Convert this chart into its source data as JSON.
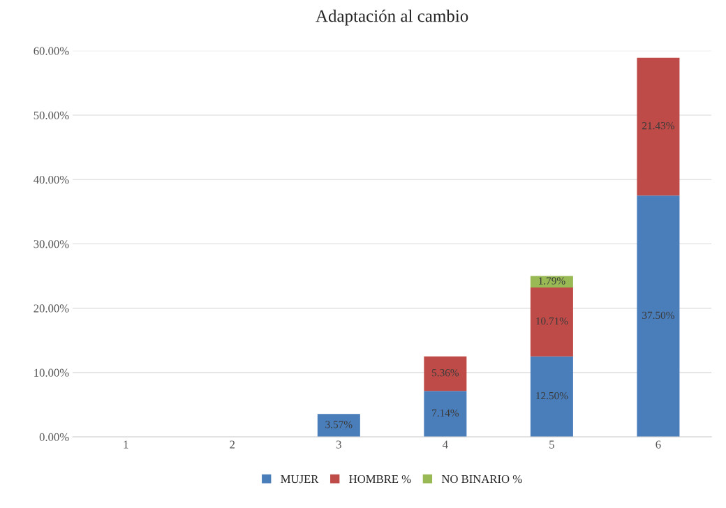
{
  "chart_data": {
    "type": "bar",
    "title": "Adaptación al cambio",
    "stacked": true,
    "categories": [
      "1",
      "2",
      "3",
      "4",
      "5",
      "6"
    ],
    "series": [
      {
        "name": "MUJER",
        "color": "#4a7ebb",
        "values": [
          null,
          null,
          3.57,
          7.14,
          12.5,
          37.5
        ],
        "value_labels": [
          null,
          null,
          "3.57%",
          "7.14%",
          "12.50%",
          "37.50%"
        ]
      },
      {
        "name": "HOMBRE %",
        "color": "#be4b48",
        "values": [
          null,
          null,
          null,
          5.36,
          10.71,
          21.43
        ],
        "value_labels": [
          null,
          null,
          null,
          "5.36%",
          "10.71%",
          "21.43%"
        ]
      },
      {
        "name": "NO BINARIO %",
        "color": "#98b954",
        "values": [
          null,
          null,
          null,
          null,
          1.79,
          null
        ],
        "value_labels": [
          null,
          null,
          null,
          null,
          "1.79%",
          null
        ]
      }
    ],
    "ylim": [
      0,
      60
    ],
    "yticks": [
      {
        "value": 0,
        "label": "0.00%"
      },
      {
        "value": 10,
        "label": "10.00%"
      },
      {
        "value": 20,
        "label": "20.00%"
      },
      {
        "value": 30,
        "label": "30.00%"
      },
      {
        "value": 40,
        "label": "40.00%"
      },
      {
        "value": 50,
        "label": "50.00%"
      },
      {
        "value": 60,
        "label": "60.00%"
      }
    ],
    "grid": "y",
    "legend": "bottom"
  }
}
